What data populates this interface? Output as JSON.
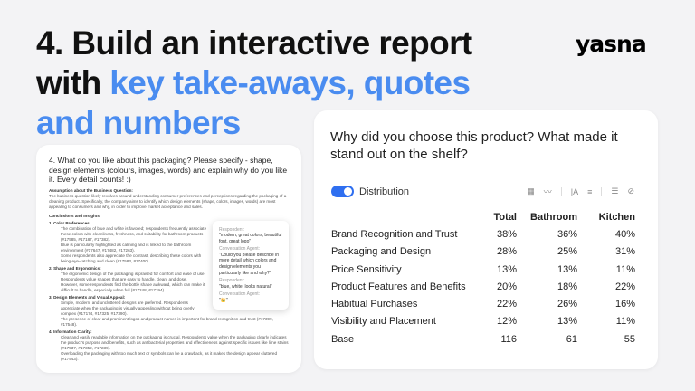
{
  "headline": {
    "line1": "4. Build an interactive report",
    "line2_prefix": "with ",
    "line2_highlight": "key take-aways, quotes",
    "line3": "and numbers"
  },
  "logo": "yasna",
  "colors": {
    "accent": "#4a8cf0",
    "toggle": "#2f6ff0"
  },
  "report_card": {
    "question": "4. What do you like about this packaging? Please specify - shape, design elements (colours, images, words) and explain why do you like it. Every detail counts! :)",
    "assumption_heading": "Assumption about the Business Question:",
    "assumption_text": "The business question likely revolves around understanding consumer preferences and perceptions regarding the packaging of a cleaning product. Specifically, the company aims to identify which design elements (shape, colors, images, words) are most appealing to consumers and why, in order to improve market acceptance and sales.",
    "conclusions_heading": "Conclusions and Insights:",
    "sections": [
      {
        "title": "1. Color Preferences:",
        "bullets": [
          "The combination of blue and white is favored; respondents frequently associate these colors with cleanliness, freshness, and suitability for bathroom products (#17585, #17187, #17382).",
          "Blue is particularly highlighted as calming and is linked to the bathroom environment (#17647, #17482, #17263).",
          "Some respondents also appreciate the contrast, describing these colors with being eye-catching and clean (#17583, #17400)."
        ]
      },
      {
        "title": "2. Shape and Ergonomics:",
        "bullets": [
          "The ergonomic design of the packaging is praised for comfort and ease of use. Respondents value shapes that are easy to handle, clean, and dose.",
          "However, some respondents find the bottle shape awkward, which can make it difficult to handle, especially when full (#17248, #17194)."
        ]
      },
      {
        "title": "3. Design Elements and Visual Appeal:",
        "bullets": [
          "Simple, modern, and uncluttered designs are preferred. Respondents appreciate when the packaging is visually appealing without being overly complex (#17174, #17325, #17390).",
          "The presence of clear and prominent logos and product names is important for brand recognition and trust (#17399, #17548)."
        ]
      },
      {
        "title": "4. Information Clarity:",
        "bullets": [
          "Clear and easily readable information on the packaging is crucial. Respondents value when the packaging clearly indicates the product's purpose and benefits, such as antibacterial properties and effectiveness against specific issues like lime stains (#17537, #17352, #17239).",
          "Overloading the packaging with too much text or symbols can be a drawback, as it makes the design appear cluttered (#17543)."
        ]
      }
    ],
    "chat": [
      {
        "who": "Respondent:",
        "text": "\"modern, great colors, beautiful font, great logo\""
      },
      {
        "who": "Conversation Agent:",
        "text": "\"Could you please describe in more detail which colors and design elements you particularly like and why?\""
      },
      {
        "who": "Respondent:",
        "text": "\"blue, white, looks natural\""
      },
      {
        "who": "Conversation Agent:",
        "text": "\"👑\""
      }
    ]
  },
  "table_card": {
    "question": "Why did you choose this product? What made it stand out on the shelf?",
    "toggle_label": "Distribution",
    "toggle_on": true,
    "tool_icons": [
      "table-icon",
      "trend-icon",
      "text-size-icon",
      "sort-icon",
      "list-icon",
      "hide-icon"
    ],
    "columns": [
      "Total",
      "Bathroom",
      "Kitchen"
    ],
    "rows": [
      {
        "label": "Brand Recognition and Trust",
        "values": [
          "38%",
          "36%",
          "40%"
        ]
      },
      {
        "label": "Packaging and Design",
        "values": [
          "28%",
          "25%",
          "31%"
        ]
      },
      {
        "label": "Price Sensitivity",
        "values": [
          "13%",
          "13%",
          "11%"
        ]
      },
      {
        "label": "Product Features and Benefits",
        "values": [
          "20%",
          "18%",
          "22%"
        ]
      },
      {
        "label": "Habitual Purchases",
        "values": [
          "22%",
          "26%",
          "16%"
        ]
      },
      {
        "label": "Visibility and Placement",
        "values": [
          "12%",
          "13%",
          "11%"
        ]
      },
      {
        "label": "Base",
        "values": [
          "116",
          "61",
          "55"
        ]
      }
    ]
  }
}
